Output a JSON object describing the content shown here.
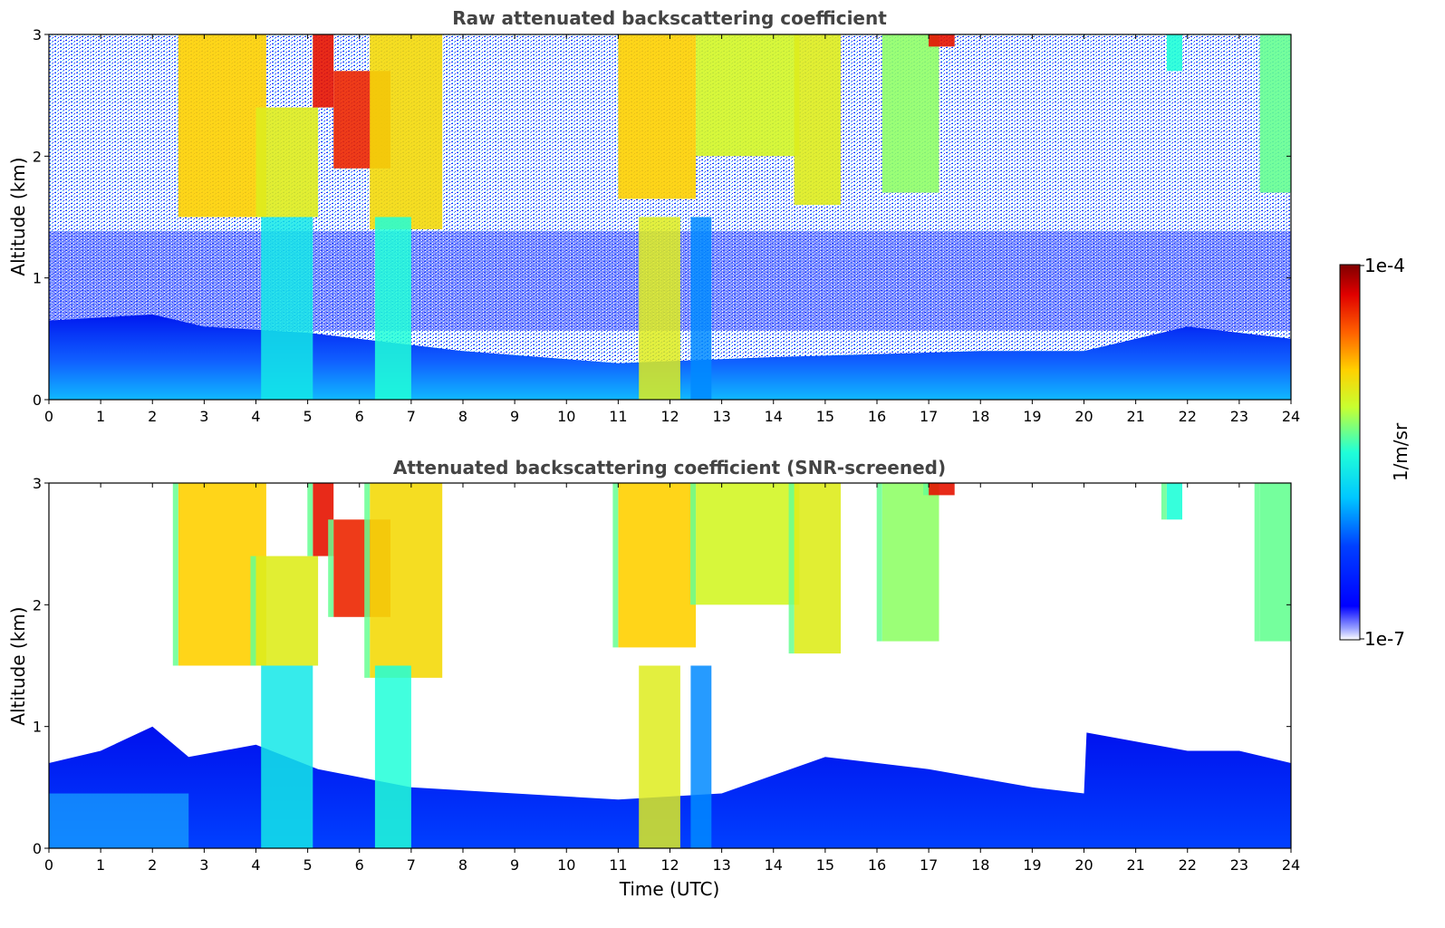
{
  "figure": {
    "colorbar": {
      "max_label": "1e-4",
      "min_label": "1e-7",
      "unit_label": "1/m/sr",
      "colormap": "jet",
      "scale": "log"
    }
  },
  "chart_data": [
    {
      "type": "heatmap",
      "title": "Raw attenuated backscattering coefficient",
      "xlabel": "",
      "ylabel": "Altitude (km)",
      "xlim": [
        0,
        24
      ],
      "ylim": [
        0,
        3
      ],
      "xticks": [
        "0",
        "1",
        "2",
        "3",
        "4",
        "5",
        "6",
        "7",
        "8",
        "9",
        "10",
        "11",
        "12",
        "13",
        "14",
        "15",
        "16",
        "17",
        "18",
        "19",
        "20",
        "21",
        "22",
        "23",
        "24"
      ],
      "yticks": [
        "0",
        "1",
        "2",
        "3"
      ],
      "value_units": "1/m/sr",
      "value_range": [
        1e-07,
        0.0001
      ],
      "cloud_features": [
        {
          "t_start": 2.5,
          "t_end": 4.2,
          "base_km": 1.5,
          "top_km": 3.0,
          "level": 0.72
        },
        {
          "t_start": 4.0,
          "t_end": 5.2,
          "base_km": 1.5,
          "top_km": 2.4,
          "level": 0.66
        },
        {
          "t_start": 5.1,
          "t_end": 5.5,
          "base_km": 2.4,
          "top_km": 3.0,
          "level": 0.9
        },
        {
          "t_start": 5.5,
          "t_end": 6.6,
          "base_km": 1.9,
          "top_km": 2.7,
          "level": 0.88
        },
        {
          "t_start": 6.2,
          "t_end": 7.6,
          "base_km": 1.4,
          "top_km": 3.0,
          "level": 0.7
        },
        {
          "t_start": 11.0,
          "t_end": 12.5,
          "base_km": 1.65,
          "top_km": 3.0,
          "level": 0.72
        },
        {
          "t_start": 12.5,
          "t_end": 14.5,
          "base_km": 2.0,
          "top_km": 3.0,
          "level": 0.64
        },
        {
          "t_start": 14.4,
          "t_end": 15.3,
          "base_km": 1.6,
          "top_km": 3.0,
          "level": 0.66
        },
        {
          "t_start": 16.1,
          "t_end": 17.2,
          "base_km": 1.7,
          "top_km": 3.0,
          "level": 0.58
        },
        {
          "t_start": 17.0,
          "t_end": 17.5,
          "base_km": 2.9,
          "top_km": 3.0,
          "level": 0.9
        },
        {
          "t_start": 21.6,
          "t_end": 21.9,
          "base_km": 2.7,
          "top_km": 3.0,
          "level": 0.5
        },
        {
          "t_start": 23.4,
          "t_end": 24.0,
          "base_km": 1.7,
          "top_km": 3.0,
          "level": 0.55
        }
      ],
      "precipitation_columns": [
        {
          "t_start": 4.1,
          "t_end": 5.1,
          "level": 0.45
        },
        {
          "t_start": 6.3,
          "t_end": 7.0,
          "level": 0.5
        },
        {
          "t_start": 11.4,
          "t_end": 12.2,
          "level": 0.66
        },
        {
          "t_start": 12.4,
          "t_end": 12.8,
          "level": 0.32
        }
      ],
      "boundary_layer": [
        {
          "t": 0,
          "top_km": 0.65
        },
        {
          "t": 2,
          "top_km": 0.7
        },
        {
          "t": 3,
          "top_km": 0.6
        },
        {
          "t": 5,
          "top_km": 0.55
        },
        {
          "t": 8,
          "top_km": 0.4
        },
        {
          "t": 11,
          "top_km": 0.3
        },
        {
          "t": 14,
          "top_km": 0.35
        },
        {
          "t": 18,
          "top_km": 0.4
        },
        {
          "t": 20,
          "top_km": 0.4
        },
        {
          "t": 22,
          "top_km": 0.6
        },
        {
          "t": 24,
          "top_km": 0.5
        }
      ]
    },
    {
      "type": "heatmap",
      "title": "Attenuated backscattering coefficient (SNR-screened)",
      "xlabel": "Time (UTC)",
      "ylabel": "Altitude (km)",
      "xlim": [
        0,
        24
      ],
      "ylim": [
        0,
        3
      ],
      "xticks": [
        "0",
        "1",
        "2",
        "3",
        "4",
        "5",
        "6",
        "7",
        "8",
        "9",
        "10",
        "11",
        "12",
        "13",
        "14",
        "15",
        "16",
        "17",
        "18",
        "19",
        "20",
        "21",
        "22",
        "23",
        "24"
      ],
      "yticks": [
        "0",
        "1",
        "2",
        "3"
      ],
      "value_units": "1/m/sr",
      "value_range": [
        1e-07,
        0.0001
      ],
      "screened_aerosol_layer": [
        {
          "t": 0,
          "top_km": 0.7
        },
        {
          "t": 1,
          "top_km": 0.8
        },
        {
          "t": 2,
          "top_km": 1.0
        },
        {
          "t": 2.7,
          "top_km": 0.75
        },
        {
          "t": 4,
          "top_km": 0.85
        },
        {
          "t": 5.2,
          "top_km": 0.65
        },
        {
          "t": 7,
          "top_km": 0.5
        },
        {
          "t": 9,
          "top_km": 0.45
        },
        {
          "t": 11,
          "top_km": 0.4
        },
        {
          "t": 13,
          "top_km": 0.45
        },
        {
          "t": 15,
          "top_km": 0.75
        },
        {
          "t": 17,
          "top_km": 0.65
        },
        {
          "t": 19,
          "top_km": 0.5
        },
        {
          "t": 20,
          "top_km": 0.45
        },
        {
          "t": 20.05,
          "top_km": 0.95
        },
        {
          "t": 22,
          "top_km": 0.8
        },
        {
          "t": 23,
          "top_km": 0.8
        },
        {
          "t": 24,
          "top_km": 0.7
        }
      ]
    }
  ]
}
